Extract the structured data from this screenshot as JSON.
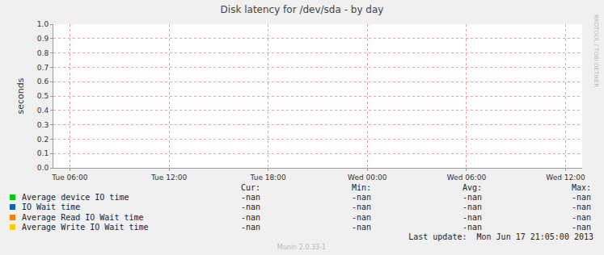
{
  "chart_data": {
    "type": "line",
    "title": "Disk latency for /dev/sda - by day",
    "y_label": "seconds",
    "x": [
      5,
      37
    ],
    "xlim": [
      5,
      37
    ],
    "xticks": [
      {
        "value": 6,
        "label": "Tue 06:00"
      },
      {
        "value": 12,
        "label": "Tue 12:00"
      },
      {
        "value": 18,
        "label": "Tue 18:00"
      },
      {
        "value": 24,
        "label": "Wed 00:00"
      },
      {
        "value": 30,
        "label": "Wed 06:00"
      },
      {
        "value": 36,
        "label": "Wed 12:00"
      }
    ],
    "ylim": [
      0,
      1
    ],
    "yticks": [
      {
        "value": 0,
        "label": "0.0"
      },
      {
        "value": 0.1,
        "label": "0.1"
      },
      {
        "value": 0.2,
        "label": "0.2"
      },
      {
        "value": 0.3,
        "label": "0.3"
      },
      {
        "value": 0.4,
        "label": "0.4"
      },
      {
        "value": 0.5,
        "label": "0.5"
      },
      {
        "value": 0.6,
        "label": "0.6"
      },
      {
        "value": 0.7,
        "label": "0.7"
      },
      {
        "value": 0.8,
        "label": "0.8"
      },
      {
        "value": 0.9,
        "label": "0.9"
      },
      {
        "value": 1,
        "label": "1.0"
      }
    ],
    "grid": true,
    "stats_columns": [
      "Cur:",
      "Min:",
      "Avg:",
      "Max:"
    ],
    "series": [
      {
        "name": "Average device IO time",
        "color": "#00cc00",
        "values": [
          null,
          null
        ],
        "stats": [
          "-nan",
          "-nan",
          "-nan",
          "-nan"
        ]
      },
      {
        "name": "IO Wait time",
        "color": "#0066b3",
        "values": [
          null,
          null
        ],
        "stats": [
          "-nan",
          "-nan",
          "-nan",
          "-nan"
        ]
      },
      {
        "name": "Average Read IO Wait time",
        "color": "#ff8000",
        "values": [
          null,
          null
        ],
        "stats": [
          "-nan",
          "-nan",
          "-nan",
          "-nan"
        ]
      },
      {
        "name": "Average Write IO Wait time",
        "color": "#ffcc00",
        "values": [
          null,
          null
        ],
        "stats": [
          "-nan",
          "-nan",
          "-nan",
          "-nan"
        ]
      }
    ],
    "last_update": "Last update:  Mon Jun 17 21:05:00 2013",
    "footer": "Munin 2.0.33-1",
    "side_text": "RRDTOOL / TOBI OETIKER"
  }
}
